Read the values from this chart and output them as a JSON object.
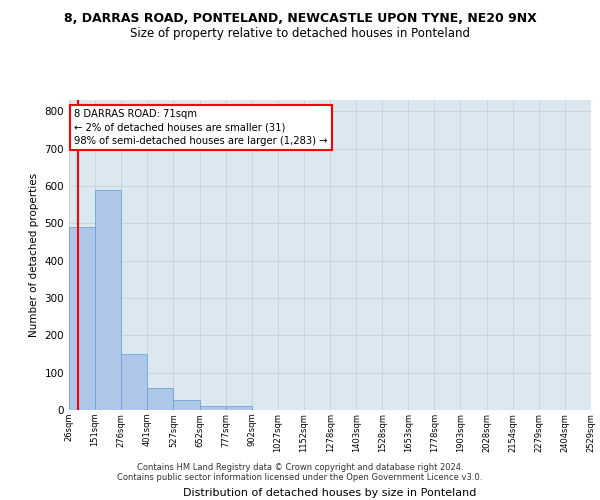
{
  "title": "8, DARRAS ROAD, PONTELAND, NEWCASTLE UPON TYNE, NE20 9NX",
  "subtitle": "Size of property relative to detached houses in Ponteland",
  "xlabel": "Distribution of detached houses by size in Ponteland",
  "ylabel": "Number of detached properties",
  "footer_line1": "Contains HM Land Registry data © Crown copyright and database right 2024.",
  "footer_line2": "Contains public sector information licensed under the Open Government Licence v3.0.",
  "bin_edges": [
    26,
    151,
    276,
    401,
    527,
    652,
    777,
    902,
    1027,
    1152,
    1278,
    1403,
    1528,
    1653,
    1778,
    1903,
    2028,
    2154,
    2279,
    2404,
    2529
  ],
  "bar_heights": [
    490,
    590,
    150,
    60,
    28,
    10,
    10,
    0,
    0,
    0,
    0,
    0,
    0,
    0,
    0,
    0,
    0,
    0,
    0,
    0
  ],
  "bar_color": "#aec6e8",
  "bar_edgecolor": "#5a9fd4",
  "grid_color": "#c8d4e0",
  "bg_color": "#dce8f0",
  "annotation_line1": "8 DARRAS ROAD: 71sqm",
  "annotation_line2": "← 2% of detached houses are smaller (31)",
  "annotation_line3": "98% of semi-detached houses are larger (1,283) →",
  "annotation_box_color": "white",
  "annotation_box_edgecolor": "red",
  "property_line_x": 71,
  "property_line_color": "red",
  "ylim": [
    0,
    830
  ],
  "yticks": [
    0,
    100,
    200,
    300,
    400,
    500,
    600,
    700,
    800
  ],
  "title_fontsize": 9.0,
  "subtitle_fontsize": 8.5
}
